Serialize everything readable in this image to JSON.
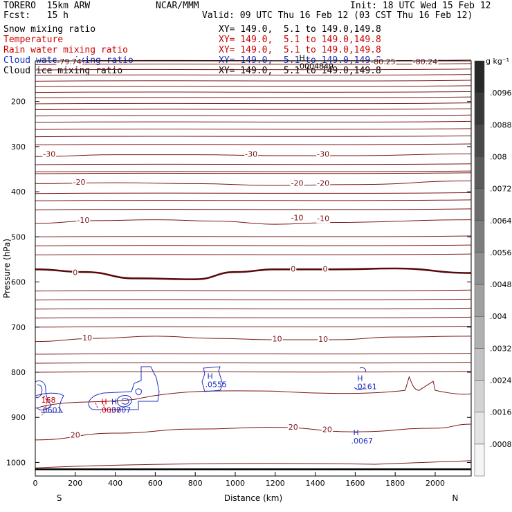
{
  "header": {
    "model": "TORERO  15km ARW",
    "center": "NCAR/MMM",
    "init": "Init: 18 UTC Wed 15 Feb 12",
    "fcst": "Fcst:   15 h",
    "valid": "Valid: 09 UTC Thu 16 Feb 12 (03 CST Thu 16 Feb 12)"
  },
  "fields": [
    {
      "name": "Snow mixing ratio",
      "xy": "XY= 149.0,  5.1 to 149.0,149.8",
      "color": "#000000"
    },
    {
      "name": "Temperature",
      "xy": "XY= 149.0,  5.1 to 149.0,149.8",
      "color": "#cc0000"
    },
    {
      "name": "Rain water mixing ratio",
      "xy": "XY= 149.0,  5.1 to 149.0,149.8",
      "color": "#cc0000"
    },
    {
      "name": "Cloud water mixing ratio",
      "xy": "XY= 149.0,  5.1 to 149.0,149.8",
      "color": "#1f2fbf"
    },
    {
      "name": "Cloud ice mixing ratio",
      "xy": "XY= 149.0,  5.1 to 149.0,149.8",
      "color": "#000000"
    }
  ],
  "colors": {
    "temperature": "#7a1414",
    "freezing": "#5a0a0a",
    "cloud_water": "#1f2fbf",
    "rain": "#cc0000"
  },
  "chart_data": {
    "type": "contour",
    "xlabel": "Distance (km)",
    "ylabel": "Pressure (hPa)",
    "xlim": [
      0,
      2180
    ],
    "ylim": [
      1030,
      110
    ],
    "x_ticks": [
      0,
      200,
      400,
      600,
      800,
      1000,
      1200,
      1400,
      1600,
      1800,
      2000
    ],
    "y_ticks": [
      200,
      300,
      400,
      500,
      600,
      700,
      800,
      900,
      1000
    ],
    "x_end_labels": {
      "left": "S",
      "right": "N"
    },
    "colorbar": {
      "units": "g kg⁻¹",
      "levels": [
        ".0008",
        ".0016",
        ".0024",
        ".0032",
        ".004",
        ".0048",
        ".0056",
        ".0064",
        ".0072",
        ".008",
        ".0088",
        ".0096"
      ],
      "level_values": [
        0.0008,
        0.0016,
        0.0024,
        0.0032,
        0.004,
        0.0048,
        0.0056,
        0.0064,
        0.0072,
        0.008,
        0.0088,
        0.0096
      ]
    },
    "temperature_contours": [
      {
        "label": "-30",
        "points": [
          [
            0,
            322
          ],
          [
            400,
            318
          ],
          [
            800,
            318
          ],
          [
            1200,
            320
          ],
          [
            1600,
            320
          ],
          [
            2180,
            316
          ]
        ]
      },
      {
        "label": "-20",
        "points": [
          [
            0,
            382
          ],
          [
            400,
            380
          ],
          [
            800,
            382
          ],
          [
            1200,
            386
          ],
          [
            1600,
            384
          ],
          [
            2180,
            376
          ]
        ]
      },
      {
        "label": "-10",
        "points": [
          [
            0,
            470
          ],
          [
            300,
            464
          ],
          [
            600,
            462
          ],
          [
            900,
            465
          ],
          [
            1200,
            472
          ],
          [
            1500,
            468
          ],
          [
            2180,
            462
          ]
        ]
      },
      {
        "label": "0",
        "freezing": true,
        "points": [
          [
            0,
            572
          ],
          [
            250,
            578
          ],
          [
            500,
            592
          ],
          [
            800,
            594
          ],
          [
            1000,
            578
          ],
          [
            1200,
            572
          ],
          [
            1500,
            572
          ],
          [
            1800,
            570
          ],
          [
            2180,
            580
          ]
        ]
      },
      {
        "label": "10",
        "points": [
          [
            0,
            732
          ],
          [
            300,
            725
          ],
          [
            600,
            720
          ],
          [
            900,
            725
          ],
          [
            1200,
            728
          ],
          [
            1500,
            728
          ],
          [
            1800,
            722
          ],
          [
            2180,
            720
          ]
        ]
      },
      {
        "label": "20",
        "points": [
          [
            0,
            950
          ],
          [
            400,
            935
          ],
          [
            800,
            926
          ],
          [
            1200,
            922
          ],
          [
            1600,
            932
          ],
          [
            2000,
            924
          ],
          [
            2180,
            915
          ]
        ]
      }
    ],
    "contour_labels": [
      {
        "text": "-79.74",
        "x": 170,
        "p": 113
      },
      {
        "text": "-80.25",
        "x": 1740,
        "p": 113
      },
      {
        "text": "-80.24",
        "x": 1950,
        "p": 113
      },
      {
        "text": "-30",
        "x": 70,
        "p": 318
      },
      {
        "text": "-30",
        "x": 1080,
        "p": 318
      },
      {
        "text": "-30",
        "x": 1440,
        "p": 318
      },
      {
        "text": "-20",
        "x": 220,
        "p": 380
      },
      {
        "text": "-20",
        "x": 1310,
        "p": 382
      },
      {
        "text": "-20",
        "x": 1440,
        "p": 382
      },
      {
        "text": "-10",
        "x": 240,
        "p": 464
      },
      {
        "text": "-10",
        "x": 1310,
        "p": 459
      },
      {
        "text": "-10",
        "x": 1440,
        "p": 460
      },
      {
        "text": "0",
        "x": 200,
        "p": 580
      },
      {
        "text": "0",
        "x": 1290,
        "p": 572
      },
      {
        "text": "0",
        "x": 1450,
        "p": 572
      },
      {
        "text": "10",
        "x": 260,
        "p": 725
      },
      {
        "text": "10",
        "x": 1210,
        "p": 727
      },
      {
        "text": "10",
        "x": 1440,
        "p": 728
      },
      {
        "text": "20",
        "x": 200,
        "p": 940
      },
      {
        "text": "20",
        "x": 1290,
        "p": 923
      },
      {
        "text": "20",
        "x": 1460,
        "p": 928
      }
    ],
    "maxima": [
      {
        "symbol": "H",
        "value": ".0004849",
        "x": 1320,
        "p": 120,
        "color": "#000000"
      },
      {
        "symbol": "H",
        "value": ".0555",
        "x": 860,
        "p": 825,
        "color": "#1f2fbf"
      },
      {
        "symbol": "H",
        "value": ".0161",
        "x": 1610,
        "p": 830,
        "color": "#1f2fbf"
      },
      {
        "symbol": "H",
        "value": ".0067",
        "x": 1590,
        "p": 950,
        "color": "#1f2fbf"
      },
      {
        "symbol": "H",
        "value": ".0037",
        "x": 330,
        "p": 882,
        "color": "#cc0000"
      },
      {
        "symbol": "H",
        "value": ".0807",
        "x": 380,
        "p": 882,
        "color": "#1f2fbf"
      },
      {
        "symbol": "",
        "value": "168",
        "x": 40,
        "p": 860,
        "color": "#cc0000"
      },
      {
        "symbol": "",
        "value": ".0601",
        "x": 35,
        "p": 882,
        "color": "#1f2fbf"
      }
    ]
  }
}
